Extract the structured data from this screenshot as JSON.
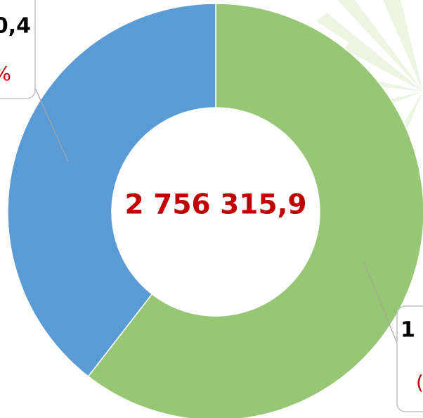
{
  "chart_data": {
    "type": "donut",
    "center_label": "2 756 315,9",
    "values": [
      60.5,
      39.5
    ],
    "colors": [
      "#97c675",
      "#5b9bd5"
    ],
    "annotations": [
      "0,4",
      "%",
      "1",
      "("
    ]
  }
}
